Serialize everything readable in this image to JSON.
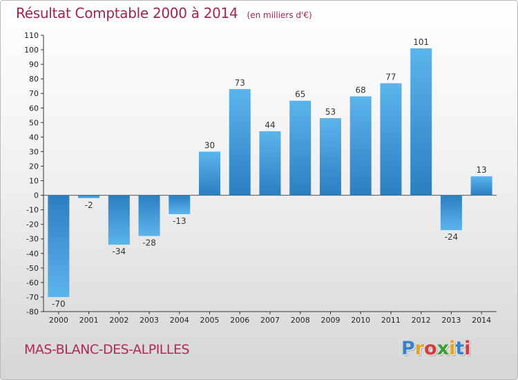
{
  "chart_data": {
    "type": "bar",
    "title": "Résultat Comptable 2000 à 2014",
    "subtitle": "(en milliers d'€)",
    "categories": [
      "2000",
      "2001",
      "2002",
      "2003",
      "2004",
      "2005",
      "2006",
      "2007",
      "2008",
      "2009",
      "2010",
      "2011",
      "2012",
      "2013",
      "2014"
    ],
    "values": [
      -70,
      -2,
      -34,
      -28,
      -13,
      30,
      73,
      44,
      65,
      53,
      68,
      77,
      101,
      -24,
      13
    ],
    "ylim": [
      -80,
      110
    ],
    "yticks": [
      -80,
      -70,
      -60,
      -50,
      -40,
      -30,
      -20,
      -10,
      0,
      10,
      20,
      30,
      40,
      50,
      60,
      70,
      80,
      90,
      100,
      110
    ],
    "xlabel": "",
    "ylabel": "",
    "grid": false,
    "colors": {
      "bar_dark": "#2a7fc1",
      "bar_light": "#5cb4ec",
      "title": "#a0244e"
    }
  },
  "footer": {
    "commune": "MAS-BLANC-DES-ALPILLES",
    "logo_letters": [
      {
        "ch": "P",
        "color": "#3b7fc4"
      },
      {
        "ch": "r",
        "color": "#e8a21c"
      },
      {
        "ch": "o",
        "color": "#d23c3c"
      },
      {
        "ch": "x",
        "color": "#3f9a3a"
      },
      {
        "ch": "i",
        "color": "#e8a21c"
      },
      {
        "ch": "t",
        "color": "#3b7fc4"
      },
      {
        "ch": "i",
        "color": "#d23c3c"
      }
    ]
  }
}
